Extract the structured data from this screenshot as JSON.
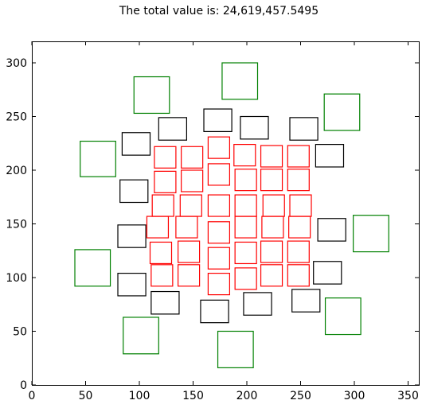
{
  "chart_data": {
    "type": "scatter",
    "title": "The total value is: 24,619,457.5495",
    "xlabel": "",
    "ylabel": "",
    "xlim": [
      0,
      360
    ],
    "ylim": [
      0,
      320
    ],
    "xticks": [
      0,
      50,
      100,
      150,
      200,
      250,
      300,
      350
    ],
    "yticks": [
      0,
      50,
      100,
      150,
      200,
      250,
      300
    ],
    "grid": false,
    "mark": "square outline",
    "series": [
      {
        "name": "green",
        "color": "#008000",
        "squares": [
          {
            "x": 40,
            "y": 92,
            "w": 33,
            "h": 34
          },
          {
            "x": 45,
            "y": 194,
            "w": 33,
            "h": 33
          },
          {
            "x": 85,
            "y": 29,
            "w": 33,
            "h": 34
          },
          {
            "x": 95,
            "y": 253,
            "w": 33,
            "h": 34
          },
          {
            "x": 173,
            "y": 16,
            "w": 33,
            "h": 34
          },
          {
            "x": 177,
            "y": 266,
            "w": 33,
            "h": 34
          },
          {
            "x": 273,
            "y": 47,
            "w": 33,
            "h": 34
          },
          {
            "x": 272,
            "y": 237,
            "w": 33,
            "h": 34
          },
          {
            "x": 299,
            "y": 124,
            "w": 33,
            "h": 34
          }
        ]
      },
      {
        "name": "black",
        "color": "#000000",
        "squares": [
          {
            "x": 80,
            "y": 128,
            "w": 26,
            "h": 21
          },
          {
            "x": 80,
            "y": 83,
            "w": 26,
            "h": 21
          },
          {
            "x": 82,
            "y": 170,
            "w": 26,
            "h": 21
          },
          {
            "x": 84,
            "y": 214,
            "w": 26,
            "h": 21
          },
          {
            "x": 111,
            "y": 66,
            "w": 26,
            "h": 21
          },
          {
            "x": 118,
            "y": 228,
            "w": 26,
            "h": 21
          },
          {
            "x": 157,
            "y": 58,
            "w": 26,
            "h": 21
          },
          {
            "x": 160,
            "y": 236,
            "w": 26,
            "h": 21
          },
          {
            "x": 197,
            "y": 65,
            "w": 26,
            "h": 21
          },
          {
            "x": 194,
            "y": 229,
            "w": 26,
            "h": 21
          },
          {
            "x": 242,
            "y": 68,
            "w": 26,
            "h": 21
          },
          {
            "x": 240,
            "y": 228,
            "w": 26,
            "h": 21
          },
          {
            "x": 262,
            "y": 94,
            "w": 26,
            "h": 21
          },
          {
            "x": 264,
            "y": 203,
            "w": 26,
            "h": 21
          },
          {
            "x": 266,
            "y": 134,
            "w": 26,
            "h": 21
          }
        ]
      },
      {
        "name": "red",
        "color": "#ff0000",
        "squares": [
          {
            "x": 114,
            "y": 202,
            "w": 20,
            "h": 20
          },
          {
            "x": 114,
            "y": 179,
            "w": 20,
            "h": 20
          },
          {
            "x": 112,
            "y": 157,
            "w": 20,
            "h": 20
          },
          {
            "x": 107,
            "y": 137,
            "w": 20,
            "h": 20
          },
          {
            "x": 110,
            "y": 113,
            "w": 20,
            "h": 20
          },
          {
            "x": 111,
            "y": 92,
            "w": 20,
            "h": 20
          },
          {
            "x": 139,
            "y": 202,
            "w": 20,
            "h": 20
          },
          {
            "x": 139,
            "y": 180,
            "w": 20,
            "h": 20
          },
          {
            "x": 138,
            "y": 157,
            "w": 20,
            "h": 20
          },
          {
            "x": 134,
            "y": 137,
            "w": 20,
            "h": 20
          },
          {
            "x": 136,
            "y": 114,
            "w": 20,
            "h": 20
          },
          {
            "x": 136,
            "y": 92,
            "w": 20,
            "h": 20
          },
          {
            "x": 164,
            "y": 211,
            "w": 20,
            "h": 20
          },
          {
            "x": 164,
            "y": 186,
            "w": 20,
            "h": 20
          },
          {
            "x": 164,
            "y": 157,
            "w": 20,
            "h": 20
          },
          {
            "x": 164,
            "y": 132,
            "w": 20,
            "h": 20
          },
          {
            "x": 164,
            "y": 108,
            "w": 20,
            "h": 20
          },
          {
            "x": 164,
            "y": 84,
            "w": 20,
            "h": 20
          },
          {
            "x": 188,
            "y": 204,
            "w": 20,
            "h": 20
          },
          {
            "x": 189,
            "y": 181,
            "w": 20,
            "h": 20
          },
          {
            "x": 189,
            "y": 157,
            "w": 20,
            "h": 20
          },
          {
            "x": 189,
            "y": 137,
            "w": 20,
            "h": 20
          },
          {
            "x": 189,
            "y": 113,
            "w": 20,
            "h": 20
          },
          {
            "x": 189,
            "y": 89,
            "w": 20,
            "h": 20
          },
          {
            "x": 213,
            "y": 203,
            "w": 20,
            "h": 20
          },
          {
            "x": 213,
            "y": 181,
            "w": 20,
            "h": 20
          },
          {
            "x": 215,
            "y": 157,
            "w": 20,
            "h": 20
          },
          {
            "x": 214,
            "y": 137,
            "w": 20,
            "h": 20
          },
          {
            "x": 213,
            "y": 114,
            "w": 20,
            "h": 20
          },
          {
            "x": 213,
            "y": 92,
            "w": 20,
            "h": 20
          },
          {
            "x": 238,
            "y": 203,
            "w": 20,
            "h": 20
          },
          {
            "x": 238,
            "y": 181,
            "w": 20,
            "h": 20
          },
          {
            "x": 240,
            "y": 157,
            "w": 20,
            "h": 20
          },
          {
            "x": 239,
            "y": 137,
            "w": 20,
            "h": 20
          },
          {
            "x": 238,
            "y": 114,
            "w": 20,
            "h": 20
          },
          {
            "x": 238,
            "y": 92,
            "w": 20,
            "h": 20
          }
        ]
      }
    ]
  }
}
